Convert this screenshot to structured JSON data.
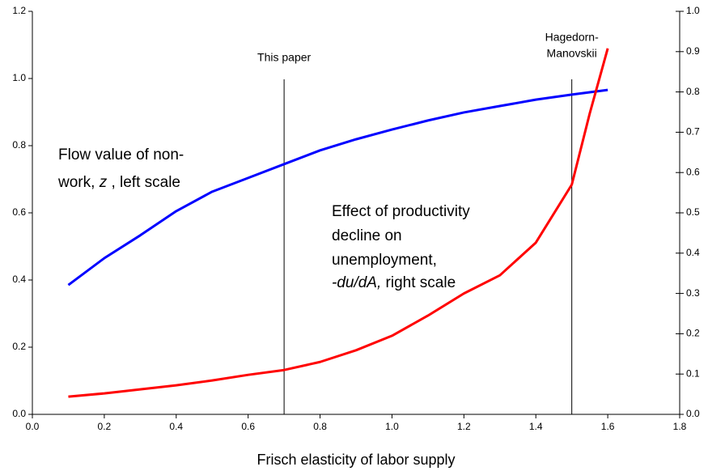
{
  "chart_data": {
    "type": "line",
    "xlabel": "Frisch elasticity of labor supply",
    "xlim": [
      0,
      1.8
    ],
    "xticks": [
      {
        "value": 0,
        "label": "0.0"
      },
      0.2,
      0.4,
      0.6,
      0.8,
      {
        "value": 1,
        "label": "1.0"
      },
      1.2,
      1.4,
      1.6,
      1.8
    ],
    "ylim": [
      0,
      1.2
    ],
    "yticks": [
      {
        "value": 0,
        "label": "0.0"
      },
      0.2,
      0.4,
      0.6,
      0.8,
      {
        "value": 1,
        "label": "1.0"
      },
      1.2
    ],
    "y2lim": [
      0,
      1
    ],
    "y2ticks": [
      {
        "value": 0,
        "label": "0.0"
      },
      0.1,
      0.2,
      0.3,
      0.4,
      0.5,
      0.6,
      0.7,
      0.8,
      0.9,
      {
        "value": 1,
        "label": "1.0"
      }
    ],
    "grid": false,
    "series": [
      {
        "color": "#0000ff",
        "axis": "y",
        "x": [
          0.1,
          0.2,
          0.3,
          0.4,
          0.5,
          0.6,
          0.7,
          0.8,
          0.9,
          1,
          1.1,
          1.2,
          1.3,
          1.4,
          1.5,
          1.6
        ],
        "values": [
          0.385,
          0.465,
          0.533,
          0.605,
          0.663,
          0.704,
          0.745,
          0.786,
          0.819,
          0.848,
          0.875,
          0.899,
          0.918,
          0.937,
          0.952,
          0.966
        ]
      },
      {
        "color": "#ff0000",
        "axis": "y2",
        "x": [
          0.1,
          0.2,
          0.3,
          0.4,
          0.5,
          0.6,
          0.7,
          0.8,
          0.9,
          1,
          1.1,
          1.2,
          1.3,
          1.4,
          1.5,
          1.55,
          1.6
        ],
        "values": [
          0.044,
          0.052,
          0.062,
          0.072,
          0.084,
          0.098,
          0.11,
          0.13,
          0.159,
          0.195,
          0.245,
          0.3,
          0.345,
          0.426,
          0.57,
          0.747,
          0.908
        ]
      }
    ],
    "markers": [
      {
        "x": 0.7,
        "label": [
          "This paper"
        ]
      },
      {
        "x": 1.5,
        "label": [
          "Hagedorn-",
          "Manovskii"
        ]
      }
    ],
    "annotations": [
      {
        "lines": [
          [
            {
              "text": "Flow value of non-",
              "italic": false
            }
          ],
          [
            {
              "text": "work, ",
              "italic": false
            },
            {
              "text": "z",
              "italic": true
            },
            {
              "text": " , left scale",
              "italic": false
            }
          ]
        ]
      },
      {
        "lines": [
          [
            {
              "text": "Effect of productivity",
              "italic": false
            }
          ],
          [
            {
              "text": "decline on",
              "italic": false
            }
          ],
          [
            {
              "text": "unemployment,",
              "italic": false
            }
          ],
          [
            {
              "text": "-du/dA,",
              "italic": true
            },
            {
              "text": " right scale",
              "italic": false
            }
          ]
        ]
      }
    ]
  }
}
